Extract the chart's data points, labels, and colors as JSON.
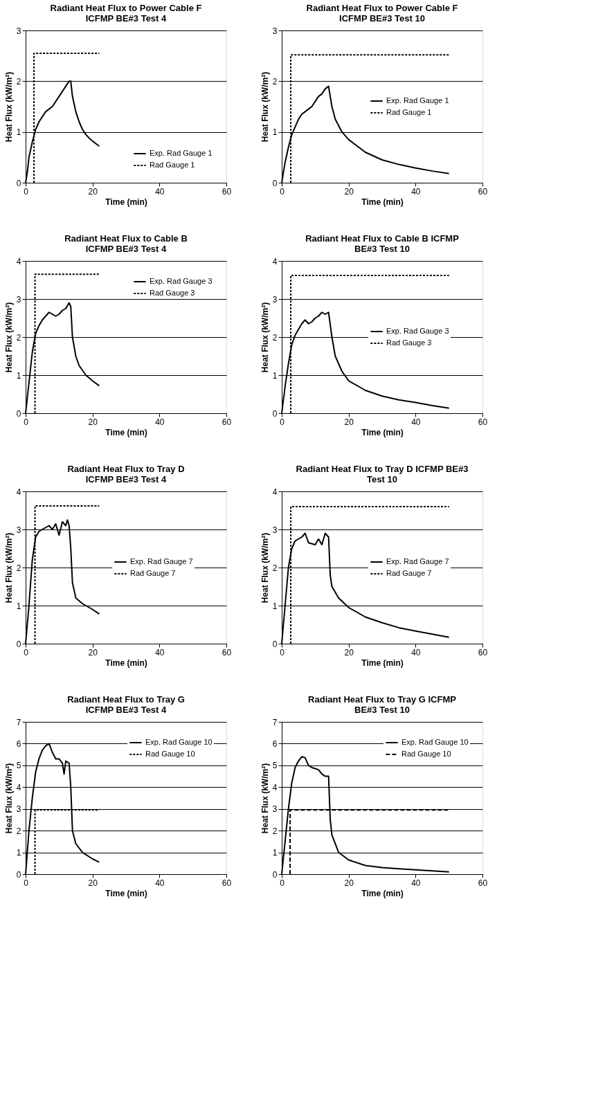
{
  "chart_data": [
    {
      "type": "line",
      "title": "Radiant Heat Flux to Power Cable F\nICFMP BE#3 Test 4",
      "xlabel": "Time (min)",
      "ylabel": "Heat Flux (kW/m²)",
      "xlim": [
        0,
        60
      ],
      "xticks": [
        0,
        20,
        40,
        60
      ],
      "ylim": [
        0,
        3
      ],
      "yticks": [
        0,
        1,
        2,
        3
      ],
      "grid": "y",
      "legend": "bottom right",
      "series": [
        {
          "name": "Exp. Rad Gauge 1",
          "color": "#000000",
          "line_style": "solid",
          "x": [
            0,
            0.5,
            1,
            2,
            3,
            4,
            5,
            6,
            7,
            8,
            9,
            10,
            11,
            12,
            13,
            13.5,
            14,
            15,
            16,
            17,
            18,
            19,
            20,
            21,
            22
          ],
          "values": [
            0,
            0.2,
            0.5,
            0.8,
            1.05,
            1.2,
            1.3,
            1.4,
            1.45,
            1.5,
            1.6,
            1.7,
            1.8,
            1.9,
            2.0,
            2.0,
            1.7,
            1.4,
            1.2,
            1.05,
            0.95,
            0.88,
            0.82,
            0.77,
            0.72
          ]
        },
        {
          "name": "Rad Gauge 1",
          "color": "#000000",
          "line_style": "dotted",
          "x": [
            2.5,
            2.5,
            3,
            22
          ],
          "values": [
            0,
            2.55,
            2.55,
            2.55
          ]
        }
      ]
    },
    {
      "type": "line",
      "title": "Radiant Heat Flux to Power Cable F\nICFMP BE#3 Test 10",
      "xlabel": "Time (min)",
      "ylabel": "Heat Flux (kW/m²)",
      "xlim": [
        0,
        60
      ],
      "xticks": [
        0,
        20,
        40,
        60
      ],
      "ylim": [
        0,
        3
      ],
      "yticks": [
        0,
        1,
        2,
        3
      ],
      "grid": "y",
      "legend": "right",
      "series": [
        {
          "name": "Exp. Rad Gauge 1",
          "color": "#000000",
          "line_style": "solid",
          "x": [
            0,
            1,
            2,
            3,
            4,
            5,
            6,
            7,
            8,
            9,
            10,
            11,
            12,
            13,
            14,
            15,
            16,
            18,
            20,
            25,
            30,
            35,
            40,
            45,
            50
          ],
          "values": [
            0,
            0.4,
            0.7,
            0.95,
            1.1,
            1.25,
            1.35,
            1.4,
            1.45,
            1.5,
            1.6,
            1.7,
            1.75,
            1.85,
            1.9,
            1.5,
            1.25,
            1.0,
            0.85,
            0.6,
            0.45,
            0.36,
            0.29,
            0.23,
            0.18
          ]
        },
        {
          "name": "Rad Gauge 1",
          "color": "#000000",
          "line_style": "dotted",
          "x": [
            2.7,
            2.7,
            3,
            50
          ],
          "values": [
            0,
            2.52,
            2.52,
            2.52
          ]
        }
      ]
    },
    {
      "type": "line",
      "title": "Radiant Heat Flux to Cable B\nICFMP BE#3 Test 4",
      "xlabel": "Time (min)",
      "ylabel": "Heat Flux (kW/m²)",
      "xlim": [
        0,
        60
      ],
      "xticks": [
        0,
        20,
        40,
        60
      ],
      "ylim": [
        0,
        4
      ],
      "yticks": [
        0,
        1,
        2,
        3,
        4
      ],
      "grid": "y",
      "legend": "top right",
      "series": [
        {
          "name": "Exp. Rad Gauge 3",
          "color": "#000000",
          "line_style": "solid",
          "x": [
            0,
            1,
            2,
            3,
            4,
            5,
            6,
            7,
            8,
            9,
            10,
            11,
            12,
            13,
            13.5,
            14,
            15,
            16,
            18,
            20,
            22
          ],
          "values": [
            0,
            0.8,
            1.6,
            2.1,
            2.3,
            2.45,
            2.55,
            2.65,
            2.6,
            2.55,
            2.6,
            2.7,
            2.75,
            2.9,
            2.8,
            2.0,
            1.5,
            1.25,
            1.0,
            0.85,
            0.72
          ]
        },
        {
          "name": "Rad Gauge 3",
          "color": "#000000",
          "line_style": "dotted",
          "x": [
            2.8,
            2.8,
            3,
            22
          ],
          "values": [
            0,
            3.65,
            3.65,
            3.65
          ]
        }
      ]
    },
    {
      "type": "line",
      "title": "Radiant Heat Flux to Cable B ICFMP\nBE#3 Test 10",
      "xlabel": "Time (min)",
      "ylabel": "Heat Flux (kW/m²)",
      "xlim": [
        0,
        60
      ],
      "xticks": [
        0,
        20,
        40,
        60
      ],
      "ylim": [
        0,
        4
      ],
      "yticks": [
        0,
        1,
        2,
        3,
        4
      ],
      "grid": "y",
      "legend": "right",
      "series": [
        {
          "name": "Exp. Rad Gauge 3",
          "color": "#000000",
          "line_style": "solid",
          "x": [
            0,
            1,
            2,
            3,
            4,
            5,
            6,
            7,
            8,
            9,
            10,
            11,
            12,
            13,
            14,
            15,
            16,
            18,
            20,
            25,
            30,
            35,
            40,
            45,
            50
          ],
          "values": [
            0,
            0.7,
            1.3,
            1.8,
            2.05,
            2.2,
            2.35,
            2.45,
            2.35,
            2.4,
            2.5,
            2.55,
            2.65,
            2.6,
            2.65,
            2.0,
            1.5,
            1.1,
            0.85,
            0.6,
            0.45,
            0.35,
            0.28,
            0.2,
            0.13
          ]
        },
        {
          "name": "Rad Gauge 3",
          "color": "#000000",
          "line_style": "dotted",
          "x": [
            2.7,
            2.7,
            3,
            50
          ],
          "values": [
            0,
            3.62,
            3.62,
            3.62
          ]
        }
      ]
    },
    {
      "type": "line",
      "title": "Radiant Heat Flux to Tray D\nICFMP BE#3 Test 4",
      "xlabel": "Time (min)",
      "ylabel": "Heat Flux (kW/m²)",
      "xlim": [
        0,
        60
      ],
      "xticks": [
        0,
        20,
        40,
        60
      ],
      "ylim": [
        0,
        4
      ],
      "yticks": [
        0,
        1,
        2,
        3,
        4
      ],
      "grid": "y",
      "legend": "right",
      "series": [
        {
          "name": "Exp. Rad Gauge 7",
          "color": "#000000",
          "line_style": "solid",
          "x": [
            0,
            1,
            2,
            3,
            4,
            5,
            6,
            7,
            8,
            9,
            10,
            11,
            12,
            12.5,
            13,
            13.5,
            14,
            15,
            17,
            20,
            22
          ],
          "values": [
            0,
            1.0,
            2.2,
            2.8,
            2.95,
            3.0,
            3.05,
            3.1,
            3.0,
            3.15,
            2.85,
            3.2,
            3.1,
            3.25,
            3.1,
            2.5,
            1.6,
            1.2,
            1.05,
            0.9,
            0.78
          ]
        },
        {
          "name": "Rad Gauge 7",
          "color": "#000000",
          "line_style": "dotted",
          "x": [
            2.8,
            2.8,
            3,
            22
          ],
          "values": [
            0,
            3.62,
            3.62,
            3.62
          ]
        }
      ]
    },
    {
      "type": "line",
      "title": "Radiant Heat Flux to Tray D ICFMP BE#3\nTest 10",
      "xlabel": "Time (min)",
      "ylabel": "Heat Flux (kW/m²)",
      "xlim": [
        0,
        60
      ],
      "xticks": [
        0,
        20,
        40,
        60
      ],
      "ylim": [
        0,
        4
      ],
      "yticks": [
        0,
        1,
        2,
        3,
        4
      ],
      "grid": "y",
      "legend": "right",
      "series": [
        {
          "name": "Exp. Rad Gauge 7",
          "color": "#000000",
          "line_style": "solid",
          "x": [
            0,
            1,
            2,
            3,
            4,
            6,
            7,
            8,
            10,
            11,
            12,
            13,
            14,
            14.5,
            15,
            17,
            20,
            25,
            30,
            35,
            40,
            45,
            50
          ],
          "values": [
            0,
            1.0,
            2.0,
            2.5,
            2.7,
            2.8,
            2.9,
            2.65,
            2.6,
            2.75,
            2.6,
            2.9,
            2.8,
            1.8,
            1.5,
            1.2,
            0.95,
            0.7,
            0.55,
            0.42,
            0.33,
            0.25,
            0.17
          ]
        },
        {
          "name": "Rad Gauge 7",
          "color": "#000000",
          "line_style": "dotted",
          "x": [
            2.7,
            2.7,
            3,
            50
          ],
          "values": [
            0,
            3.6,
            3.6,
            3.6
          ]
        }
      ]
    },
    {
      "type": "line",
      "title": "Radiant Heat Flux to Tray G\nICFMP BE#3 Test 4",
      "xlabel": "Time (min)",
      "ylabel": "Heat Flux (kW/m²)",
      "xlim": [
        0,
        60
      ],
      "xticks": [
        0,
        20,
        40,
        60
      ],
      "ylim": [
        0,
        7
      ],
      "yticks": [
        0,
        1,
        2,
        3,
        4,
        5,
        6,
        7
      ],
      "grid": "y",
      "legend": "top right",
      "series": [
        {
          "name": "Exp. Rad Gauge 10",
          "color": "#000000",
          "line_style": "solid",
          "x": [
            0,
            1,
            2,
            3,
            4,
            5,
            6,
            7,
            8,
            9,
            10,
            11,
            11.5,
            12,
            13,
            13.5,
            14,
            15,
            17,
            20,
            22
          ],
          "values": [
            0,
            2.0,
            3.5,
            4.7,
            5.3,
            5.7,
            5.9,
            6.0,
            5.6,
            5.3,
            5.3,
            5.1,
            4.6,
            5.2,
            5.1,
            4.0,
            2.0,
            1.4,
            1.0,
            0.7,
            0.55
          ]
        },
        {
          "name": "Rad Gauge 10",
          "color": "#000000",
          "line_style": "dotted",
          "x": [
            2.8,
            2.8,
            3,
            22
          ],
          "values": [
            0,
            2.95,
            2.95,
            2.95
          ]
        }
      ]
    },
    {
      "type": "line",
      "title": "Radiant Heat Flux to Tray G ICFMP\nBE#3 Test 10",
      "xlabel": "Time (min)",
      "ylabel": "Heat Flux (kW/m²)",
      "xlim": [
        0,
        60
      ],
      "xticks": [
        0,
        20,
        40,
        60
      ],
      "ylim": [
        0,
        7
      ],
      "yticks": [
        0,
        1,
        2,
        3,
        4,
        5,
        6,
        7
      ],
      "grid": "y",
      "legend": "top right",
      "series": [
        {
          "name": "Exp. Rad Gauge 10",
          "color": "#000000",
          "line_style": "solid",
          "x": [
            0,
            1,
            2,
            3,
            4,
            5,
            6,
            7,
            8,
            9,
            10,
            11,
            12,
            13,
            14,
            14.5,
            15,
            17,
            20,
            25,
            30,
            35,
            40,
            45,
            50
          ],
          "values": [
            0,
            1.5,
            3.0,
            4.2,
            4.9,
            5.2,
            5.4,
            5.35,
            5.0,
            4.9,
            4.85,
            4.8,
            4.6,
            4.5,
            4.5,
            2.5,
            1.8,
            1.0,
            0.65,
            0.4,
            0.3,
            0.25,
            0.2,
            0.15,
            0.1
          ]
        },
        {
          "name": "Rad Gauge 10",
          "color": "#000000",
          "line_style": "dashed",
          "x": [
            2.5,
            2.5,
            3,
            50
          ],
          "values": [
            0,
            2.95,
            2.95,
            2.95
          ]
        }
      ]
    }
  ]
}
